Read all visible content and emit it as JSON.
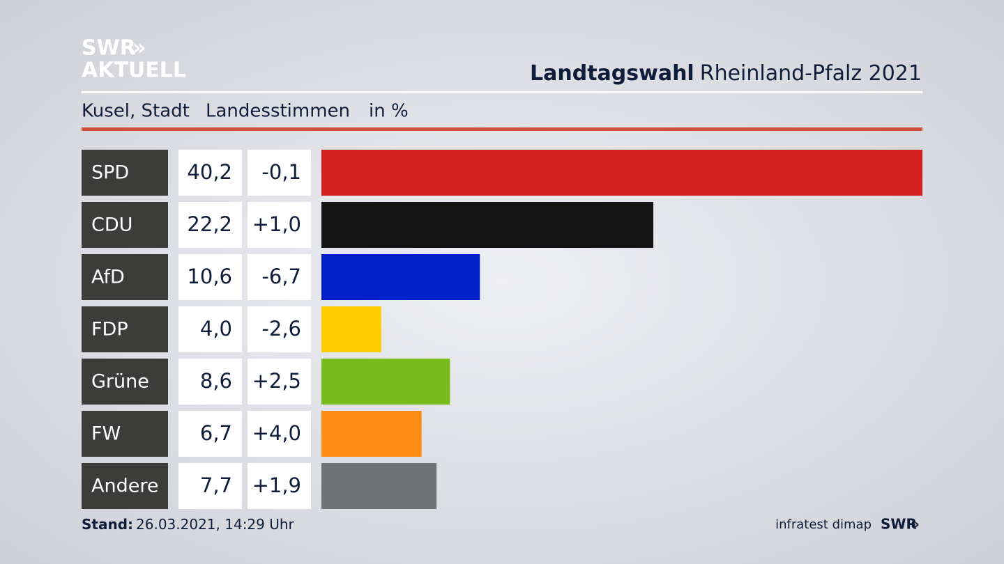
{
  "logo": {
    "line1": "SWR",
    "line2": "AKTUELL"
  },
  "chart_data": {
    "type": "bar",
    "orientation": "horizontal",
    "title_bold": "Landtagswahl",
    "title": "Rheinland-Pfalz 2021",
    "subtitle": [
      "Kusel, Stadt",
      "Landesstimmen",
      "in %"
    ],
    "categories": [
      "SPD",
      "CDU",
      "AfD",
      "FDP",
      "Grüne",
      "FW",
      "Andere"
    ],
    "values": [
      40.2,
      22.2,
      10.6,
      4.0,
      8.6,
      6.7,
      7.7
    ],
    "value_labels": [
      "40,2",
      "22,2",
      "10,6",
      "4,0",
      "8,6",
      "6,7",
      "7,7"
    ],
    "changes": [
      -0.1,
      1.0,
      -6.7,
      -2.6,
      2.5,
      4.0,
      1.9
    ],
    "change_labels": [
      "-0,1",
      "+1,0",
      "-6,7",
      "-2,6",
      "+2,5",
      "+4,0",
      "+1,9"
    ],
    "colors": [
      "#d52020",
      "#131313",
      "#0021c8",
      "#ffcc00",
      "#78bc1b",
      "#ff8c14",
      "#717274"
    ]
  },
  "footer": {
    "stand_label": "Stand:",
    "stand": "26.03.2021, 14:29 Uhr",
    "source": "infratest dimap",
    "brand": "SWR"
  }
}
